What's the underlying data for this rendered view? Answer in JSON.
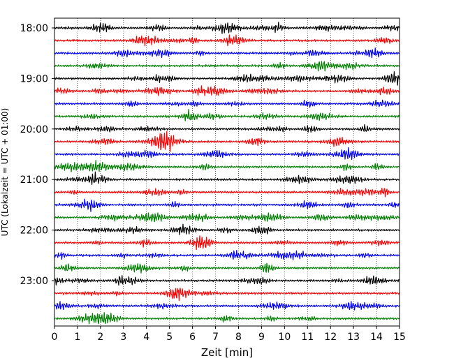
{
  "chart_data": {
    "type": "line",
    "title": "",
    "xlabel": "Zeit  [min]",
    "ylabel": "UTC (Lokalzeit = UTC + 01:00)",
    "xlim": [
      0,
      15
    ],
    "x_ticks": [
      "0",
      "1",
      "2",
      "3",
      "4",
      "5",
      "6",
      "7",
      "8",
      "9",
      "10",
      "11",
      "12",
      "13",
      "14",
      "15"
    ],
    "y_ticks": [
      "18:00",
      "19:00",
      "20:00",
      "21:00",
      "22:00",
      "23:00"
    ],
    "row_interval_minutes": 15,
    "first_row_utc": "18:00",
    "rows": 24,
    "grid": "vertical-dotted",
    "legend": "none",
    "color_cycle": [
      "#000000",
      "#ff0000",
      "#0000ff",
      "#008000"
    ]
  }
}
